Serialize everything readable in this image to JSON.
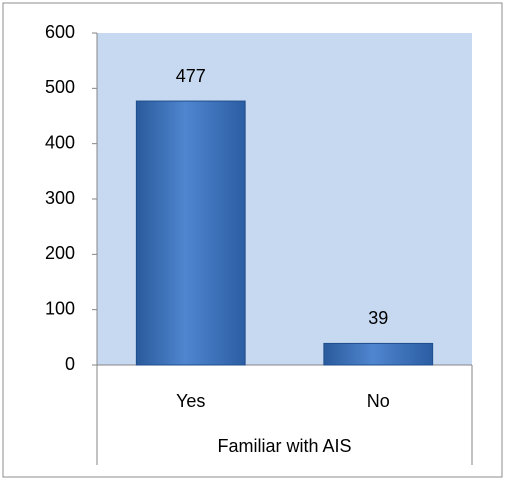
{
  "chart_data": {
    "type": "bar",
    "categories": [
      "Yes",
      "No"
    ],
    "values": [
      477,
      39
    ],
    "color": "#3a6fb8",
    "x_label": "Familiar with AIS",
    "ylim": [
      0,
      600
    ],
    "yticks": [
      0,
      100,
      200,
      300,
      400,
      500,
      600
    ],
    "grid": false
  }
}
